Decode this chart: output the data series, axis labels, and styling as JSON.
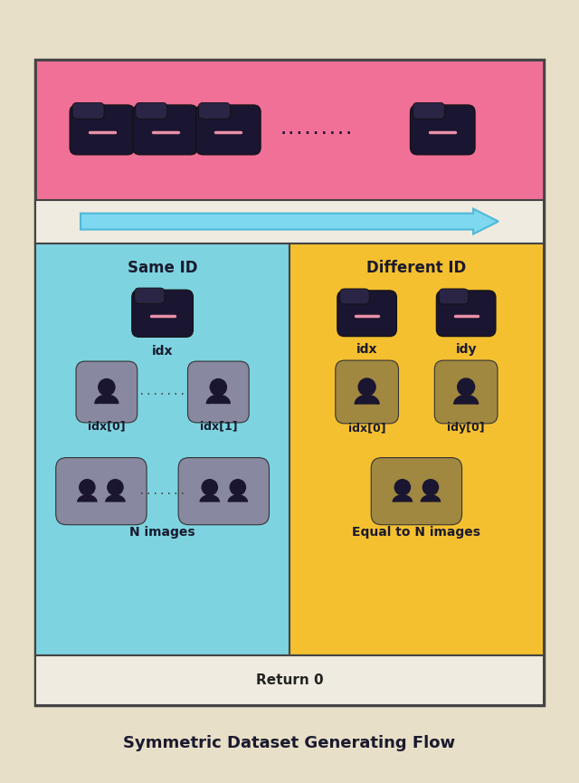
{
  "fig_bg": "#e8dfc8",
  "pink_section_color": "#f07098",
  "arrow_section_color": "#f0ebe0",
  "arrow_color": "#7dd8f0",
  "arrow_edge_color": "#50b8d8",
  "left_section_color": "#7dd4e0",
  "right_section_color": "#f5c030",
  "return_section_color": "#f0ebe0",
  "id_icon_color": "#1a1530",
  "id_icon_tab_color": "#2a2545",
  "id_dash_color": "#e890a8",
  "person_icon_left_color": "#8888a0",
  "person_icon_right_color": "#a08840",
  "person_dark": "#1a1530",
  "title": "Symmetric Dataset Generating Flow",
  "same_id_label": "Same ID",
  "diff_id_label": "Different ID",
  "return_label": "Return 0",
  "idx_label": "idx",
  "idxleft_label": "idx[0]",
  "idxright_label": "idx[1]",
  "idx_label_right": "idx",
  "idy_label_right": "idy",
  "idxleft_label_right": "idx[0]",
  "idyright_label_right": "idy[0]",
  "nimages_label": "N images",
  "equal_label": "Equal to N images",
  "dots_top": ".........",
  "dots_mid": ".......",
  "dots_bot": "......."
}
